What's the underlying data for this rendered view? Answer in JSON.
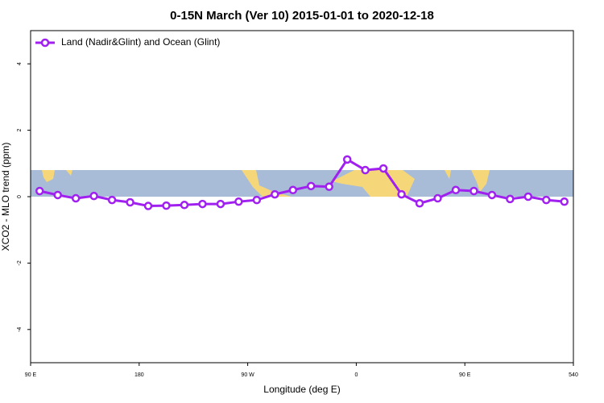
{
  "chart_data": {
    "type": "line",
    "title": "0-15N March (Ver 10)   2015-01-01 to 2020-12-18",
    "x_label": "Longitude (deg E)",
    "y_label": "XCO2 - MLO trend (ppm)",
    "x": [
      97.5,
      112.5,
      127.5,
      142.5,
      157.5,
      172.5,
      187.5,
      202.5,
      217.5,
      232.5,
      247.5,
      262.5,
      277.5,
      292.5,
      307.5,
      322.5,
      337.5,
      352.5,
      367.5,
      382.5,
      397.5,
      412.5,
      427.5,
      442.5,
      457.5,
      472.5,
      487.5,
      502.5,
      517.5,
      532.5
    ],
    "series": [
      {
        "name": "Land (Nadir&Glint) and Ocean (Glint)",
        "color": "#a020f0",
        "values": [
          0.17,
          0.05,
          -0.05,
          0.02,
          -0.1,
          -0.17,
          -0.28,
          -0.27,
          -0.25,
          -0.22,
          -0.22,
          -0.15,
          -0.1,
          0.07,
          0.2,
          0.32,
          0.3,
          1.12,
          0.8,
          0.85,
          0.07,
          -0.2,
          -0.05,
          0.2,
          0.17,
          0.05,
          -0.07,
          0,
          -0.1,
          -0.15
        ]
      }
    ],
    "xlim": [
      90,
      540
    ],
    "xticks": [
      {
        "value": 90,
        "label": "90 E"
      },
      180,
      {
        "value": 270,
        "label": "90 W"
      },
      {
        "value": 360,
        "label": "0"
      },
      {
        "value": 450,
        "label": "90 E"
      },
      540
    ],
    "ylim": [
      -5,
      5
    ],
    "yticks": [
      -4,
      -2,
      0,
      2,
      4
    ],
    "legend": "top-left"
  }
}
